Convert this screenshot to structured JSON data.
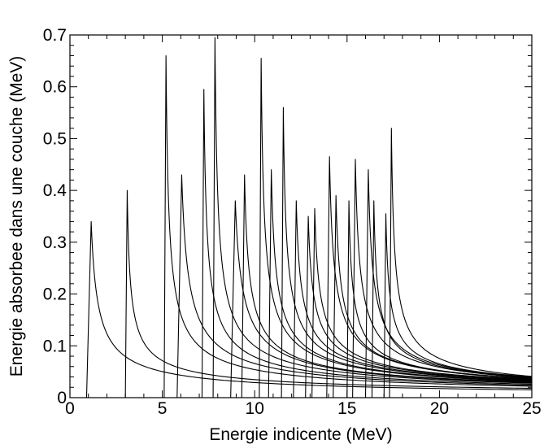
{
  "chart_data": {
    "type": "line",
    "title": "",
    "xlabel": "Energie indicente (MeV)",
    "ylabel": "Energie absorbee dans une couche (MeV)",
    "xlim": [
      0,
      25
    ],
    "ylim": [
      0,
      0.7
    ],
    "xticks": [
      0,
      5,
      10,
      15,
      20,
      25
    ],
    "yticks": [
      0,
      0.1,
      0.2,
      0.3,
      0.4,
      0.5,
      0.6,
      0.7
    ],
    "xtick_labels": [
      "0",
      "5",
      "10",
      "15",
      "20",
      "25"
    ],
    "ytick_labels": [
      "0",
      "0.1",
      "0.2",
      "0.3",
      "0.4",
      "0.5",
      "0.6",
      "0.7"
    ],
    "grid": false,
    "line_color": "#000000",
    "series": [
      {
        "onset": 0.9,
        "peak_x": 1.15,
        "peak": 0.34,
        "tail_at_25": 0.015
      },
      {
        "onset": 3.0,
        "peak_x": 3.1,
        "peak": 0.4,
        "tail_at_25": 0.018
      },
      {
        "onset": 5.1,
        "peak_x": 5.2,
        "peak": 0.66,
        "tail_at_25": 0.022
      },
      {
        "onset": 5.8,
        "peak_x": 6.05,
        "peak": 0.43,
        "tail_at_25": 0.024
      },
      {
        "onset": 7.15,
        "peak_x": 7.25,
        "peak": 0.595,
        "tail_at_25": 0.026
      },
      {
        "onset": 7.75,
        "peak_x": 7.85,
        "peak": 0.695,
        "tail_at_25": 0.028
      },
      {
        "onset": 8.7,
        "peak_x": 8.95,
        "peak": 0.38,
        "tail_at_25": 0.029
      },
      {
        "onset": 9.3,
        "peak_x": 9.45,
        "peak": 0.43,
        "tail_at_25": 0.03
      },
      {
        "onset": 10.25,
        "peak_x": 10.35,
        "peak": 0.655,
        "tail_at_25": 0.031
      },
      {
        "onset": 10.75,
        "peak_x": 10.9,
        "peak": 0.44,
        "tail_at_25": 0.032
      },
      {
        "onset": 11.45,
        "peak_x": 11.55,
        "peak": 0.56,
        "tail_at_25": 0.033
      },
      {
        "onset": 12.1,
        "peak_x": 12.25,
        "peak": 0.38,
        "tail_at_25": 0.034
      },
      {
        "onset": 12.75,
        "peak_x": 12.9,
        "peak": 0.35,
        "tail_at_25": 0.035
      },
      {
        "onset": 13.1,
        "peak_x": 13.25,
        "peak": 0.365,
        "tail_at_25": 0.035
      },
      {
        "onset": 13.9,
        "peak_x": 14.05,
        "peak": 0.465,
        "tail_at_25": 0.036
      },
      {
        "onset": 14.25,
        "peak_x": 14.4,
        "peak": 0.39,
        "tail_at_25": 0.037
      },
      {
        "onset": 15.0,
        "peak_x": 15.1,
        "peak": 0.38,
        "tail_at_25": 0.037
      },
      {
        "onset": 15.3,
        "peak_x": 15.45,
        "peak": 0.46,
        "tail_at_25": 0.038
      },
      {
        "onset": 16.0,
        "peak_x": 16.15,
        "peak": 0.44,
        "tail_at_25": 0.039
      },
      {
        "onset": 16.35,
        "peak_x": 16.45,
        "peak": 0.38,
        "tail_at_25": 0.039
      },
      {
        "onset": 17.0,
        "peak_x": 17.1,
        "peak": 0.355,
        "tail_at_25": 0.04
      },
      {
        "onset": 17.3,
        "peak_x": 17.4,
        "peak": 0.52,
        "tail_at_25": 0.041
      }
    ]
  }
}
